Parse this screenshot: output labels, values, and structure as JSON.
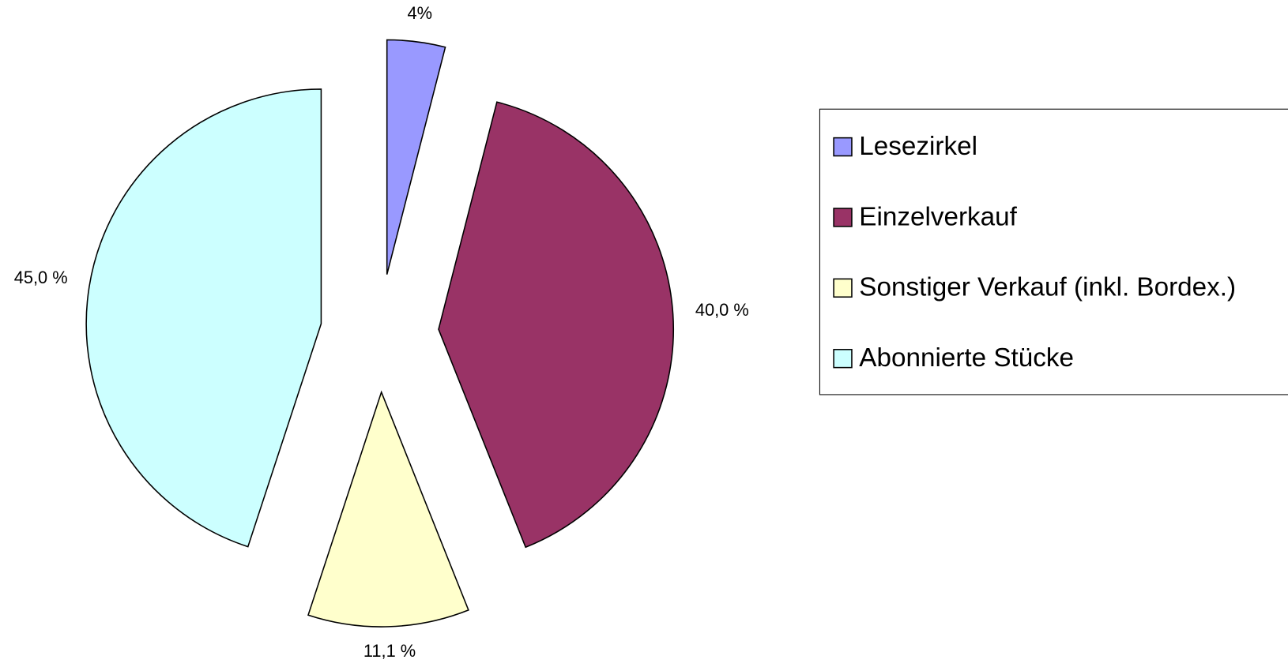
{
  "chart_data": {
    "type": "pie",
    "categories": [
      "Lesezirkel",
      "Einzelverkauf",
      "Sonstiger Verkauf (inkl. Bordex.)",
      "Abonnierte Stücke"
    ],
    "values": [
      4,
      40.0,
      11.1,
      45.0
    ],
    "value_labels": [
      "4%",
      "40,0 %",
      "11,1 %",
      "45,0 %"
    ],
    "colors": [
      "#9999ff",
      "#993366",
      "#ffffcc",
      "#ccffff"
    ],
    "legend": "right"
  }
}
